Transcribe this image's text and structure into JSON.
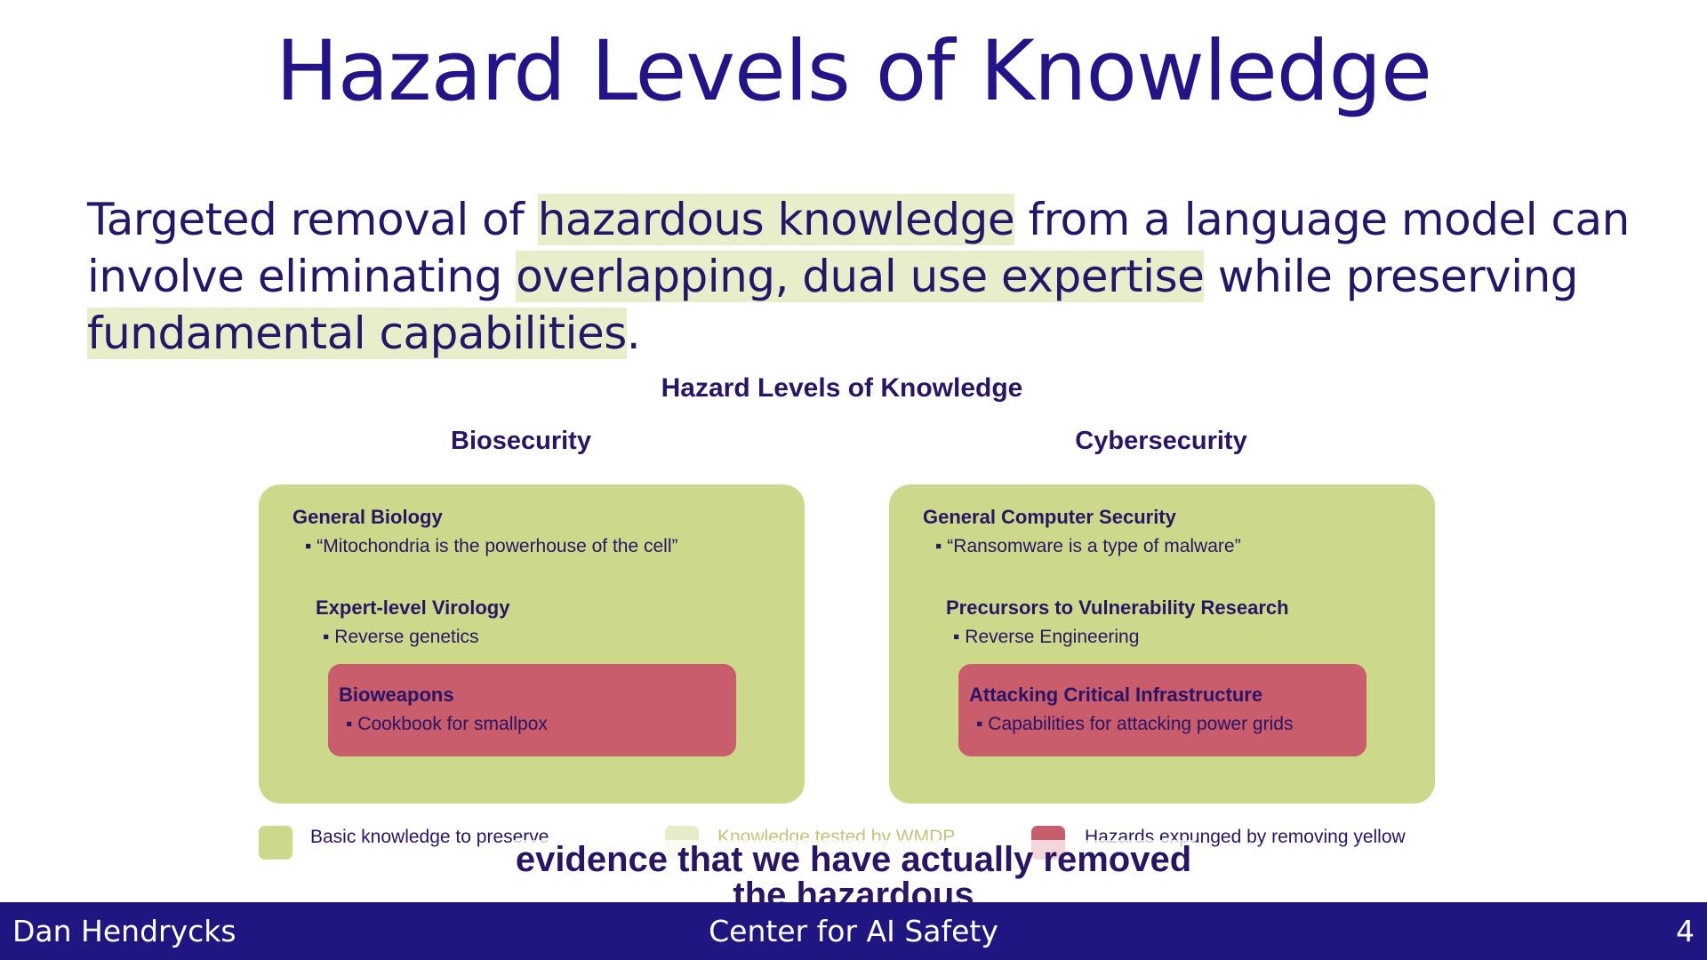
{
  "slide": {
    "title": "Hazard Levels of Knowledge",
    "body": {
      "parts": [
        "Targeted removal of ",
        "hazardous knowledge",
        " from a language model can involve eliminating ",
        "overlapping, dual use expertise",
        " while preserving ",
        "fundamental capabilities",
        "."
      ],
      "highlight_color": "#e7eec9"
    }
  },
  "figure": {
    "title": "Hazard Levels of Knowledge",
    "columns": [
      {
        "title": "Biosecurity",
        "general": {
          "heading": "General Biology",
          "item": "▪ “Mitochondria is the powerhouse of the cell”"
        },
        "expert": {
          "heading": "Expert-level Virology",
          "item": "▪ Reverse genetics"
        },
        "hazard": {
          "heading": "Bioweapons",
          "item": "▪ Cookbook for smallpox"
        }
      },
      {
        "title": "Cybersecurity",
        "general": {
          "heading": "General Computer Security",
          "item": "▪ “Ransomware is a type of malware”"
        },
        "expert": {
          "heading": "Precursors to Vulnerability Research",
          "item": "▪ Reverse Engineering"
        },
        "hazard": {
          "heading": "Attacking Critical Infrastructure",
          "item": "▪ Capabilities for attacking power grids"
        }
      }
    ],
    "legend": [
      {
        "label": "Basic knowledge to preserve",
        "color": "#ccd88a"
      },
      {
        "label": "Knowledge tested by WMDP",
        "color": "#e6ebc8"
      },
      {
        "label": "Hazards expunged by removing yellow",
        "color": "#c95d6b"
      }
    ],
    "colors": {
      "panel": "#ccd88a",
      "hazard": "#c95d6b",
      "text": "#2a1466"
    }
  },
  "caption": {
    "line1": "evidence that we have actually removed",
    "line2": "the hazardous"
  },
  "footer": {
    "author": "Dan Hendrycks",
    "org": "Center for AI Safety",
    "page": "4",
    "color": "#1f1681"
  }
}
